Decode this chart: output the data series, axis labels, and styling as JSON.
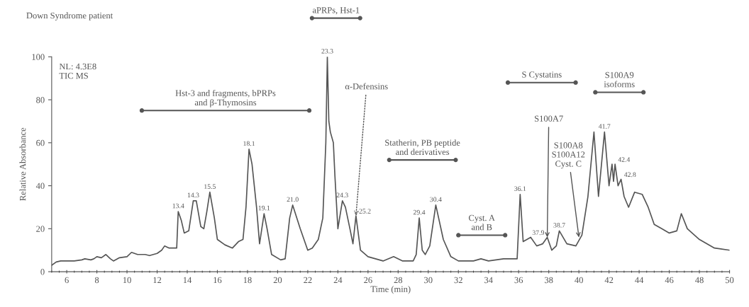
{
  "chart_data": {
    "type": "line",
    "title": "Down Syndrome patient",
    "xlabel": "Time (min)",
    "ylabel": "Relative Absorbance",
    "x": [
      5,
      5.3,
      5.6,
      6,
      6.5,
      7,
      7.2,
      7.6,
      7.8,
      8,
      8.3,
      8.6,
      8.9,
      9.1,
      9.5,
      10,
      10.3,
      10.7,
      11.2,
      11.5,
      12,
      12.3,
      12.5,
      12.8,
      13.3,
      13.4,
      13.6,
      13.8,
      14.1,
      14.4,
      14.6,
      14.9,
      15.1,
      15.3,
      15.5,
      15.8,
      16,
      16.5,
      17,
      17.4,
      17.7,
      17.9,
      18.1,
      18.3,
      18.6,
      18.8,
      19.1,
      19.3,
      19.6,
      20.2,
      20.5,
      20.8,
      21.0,
      21.5,
      22,
      22.3,
      22.7,
      23.0,
      23.2,
      23.3,
      23.4,
      23.5,
      23.7,
      23.8,
      24.0,
      24.3,
      24.5,
      24.8,
      25.0,
      25.2,
      25.5,
      26,
      27,
      27.7,
      28.3,
      29,
      29.2,
      29.4,
      29.6,
      29.8,
      30.1,
      30.5,
      31,
      31.5,
      32,
      33,
      33.5,
      34,
      35,
      35.9,
      36.1,
      36.3,
      36.8,
      37.2,
      37.6,
      37.9,
      38.2,
      38.5,
      38.7,
      39.2,
      39.8,
      40.2,
      40.6,
      41.0,
      41.3,
      41.7,
      42.0,
      42.2,
      42.3,
      42.4,
      42.6,
      42.8,
      43.0,
      43.3,
      43.7,
      44.2,
      44.6,
      45,
      45.5,
      46,
      46.5,
      46.8,
      47.2,
      48,
      49,
      50
    ],
    "values": [
      3,
      4.5,
      5,
      5,
      5,
      5.5,
      6,
      5.5,
      6,
      7,
      6.5,
      8,
      6,
      5,
      6.5,
      7,
      9,
      8,
      8,
      7.5,
      8.5,
      10,
      12,
      11,
      11,
      28,
      24,
      18,
      19,
      33,
      33,
      21,
      20,
      28,
      37,
      25,
      15,
      12.5,
      11,
      14,
      15,
      30,
      57,
      50,
      30,
      13,
      27,
      20,
      8,
      5.5,
      6,
      25,
      31,
      20,
      10,
      11,
      15,
      25,
      60,
      100,
      70,
      65,
      60,
      45,
      20,
      33,
      30,
      20,
      13,
      26,
      10,
      7,
      5,
      7,
      5,
      5,
      8,
      25,
      10,
      8,
      12,
      31,
      15,
      7,
      5,
      5,
      6,
      5,
      6,
      6,
      36,
      14,
      16,
      12,
      13,
      16,
      10,
      12,
      19,
      13,
      12,
      17,
      35,
      65,
      35,
      65,
      40,
      50,
      42,
      50,
      40,
      43,
      35,
      30,
      37,
      36,
      30,
      22,
      20,
      18,
      19,
      27,
      20,
      15,
      11,
      10
    ],
    "color": "#555555",
    "xlim": [
      5,
      50
    ],
    "ylim": [
      0,
      100
    ],
    "xticks": [
      6,
      8,
      10,
      12,
      14,
      16,
      18,
      20,
      22,
      24,
      26,
      28,
      30,
      32,
      34,
      36,
      38,
      40,
      42,
      44,
      46,
      48,
      50
    ],
    "yticks": [
      0,
      20,
      40,
      60,
      80,
      100
    ],
    "grid": false,
    "legend": false,
    "marker": "none",
    "line_style": "solid",
    "annotations": [
      "NL: 4.3E8\nTIC MS",
      {
        "text": "13.4",
        "x": 13.4,
        "y": 28
      },
      {
        "text": "14.3",
        "x": 14.4,
        "y": 33
      },
      {
        "text": "15.5",
        "x": 15.5,
        "y": 37
      },
      {
        "text": "18.1",
        "x": 18.1,
        "y": 57
      },
      {
        "text": "19.1",
        "x": 19.1,
        "y": 27
      },
      {
        "text": "21.0",
        "x": 21.0,
        "y": 31
      },
      {
        "text": "23.3",
        "x": 23.3,
        "y": 100
      },
      {
        "text": "24.3",
        "x": 24.3,
        "y": 33
      },
      {
        "text": "25.2",
        "x": 25.2,
        "y": 26
      },
      {
        "text": "29.4",
        "x": 29.4,
        "y": 25
      },
      {
        "text": "30.4",
        "x": 30.5,
        "y": 31
      },
      {
        "text": "36.1",
        "x": 36.1,
        "y": 36
      },
      {
        "text": "37.9",
        "x": 37.9,
        "y": 16
      },
      {
        "text": "38.7",
        "x": 38.7,
        "y": 19
      },
      {
        "text": "41.7",
        "x": 41.7,
        "y": 65
      },
      {
        "text": "42.4",
        "x": 42.4,
        "y": 50
      },
      {
        "text": "42.8",
        "x": 42.8,
        "y": 43
      },
      {
        "text": "α-Defensins",
        "x": 25.2,
        "y": 26
      },
      {
        "text": "S100A7",
        "x": 37.9,
        "y": 16
      },
      {
        "text": "S100A8\nS100A12\nCyst. C",
        "x": 40.0,
        "y": 16
      },
      "Hst-3 and fragments, bPRPs\nand β-Thymosins",
      "aPRPs, Hst-1",
      "Statherin, PB peptide\nand derivatives",
      "Cyst. A\nand B",
      "S Cystatins",
      "S100A9\nisoforms"
    ]
  }
}
